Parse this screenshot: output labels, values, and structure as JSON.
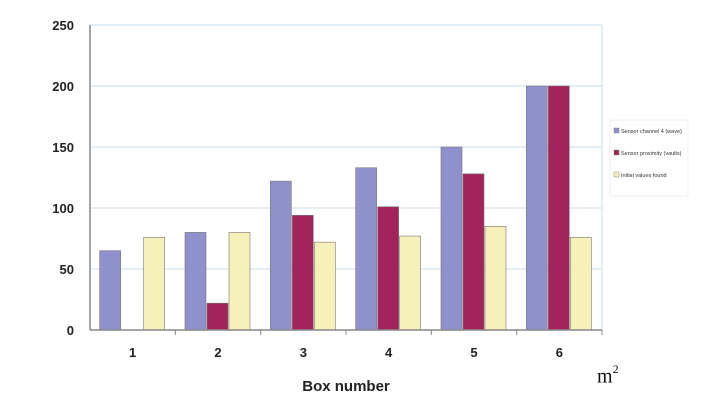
{
  "chart_data": {
    "type": "bar",
    "title": "",
    "xlabel": "Box number",
    "ylabel": "",
    "categories": [
      "1",
      "2",
      "3",
      "4",
      "5",
      "6"
    ],
    "ylim": [
      0,
      250
    ],
    "yticks": [
      "0",
      "50",
      "100",
      "150",
      "200",
      "250"
    ],
    "grid": true,
    "legend_position": "right",
    "series": [
      {
        "name": "Sensor channel 4 (wave)",
        "color": "#8e91cc",
        "values": [
          65,
          80,
          122,
          133,
          150,
          200
        ]
      },
      {
        "name": "Sensor proximity (vaults)",
        "color": "#a3245a",
        "values": [
          null,
          22,
          94,
          101,
          128,
          200
        ]
      },
      {
        "name": "Initial values found",
        "color": "#f5f1b8",
        "values": [
          76,
          80,
          72,
          77,
          85,
          76
        ]
      }
    ]
  },
  "annotation": {
    "unit_base": "m",
    "unit_exp": "2"
  }
}
